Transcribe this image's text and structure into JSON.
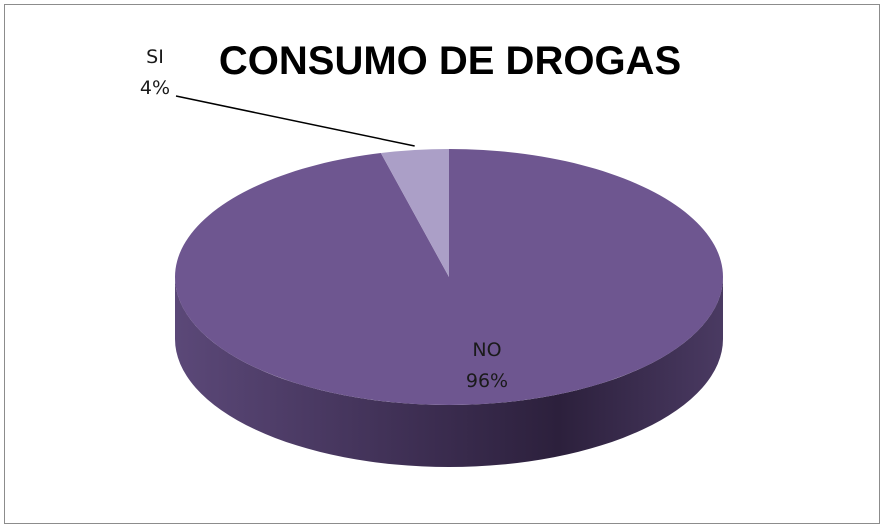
{
  "chart_data": {
    "type": "pie",
    "title": "CONSUMO DE DROGAS",
    "categories": [
      "NO",
      "SI"
    ],
    "values": [
      96,
      4
    ],
    "labels": [
      {
        "category": "NO",
        "percent": "96%"
      },
      {
        "category": "SI",
        "percent": "4%"
      }
    ],
    "legend": "none",
    "style": "3d",
    "colors": {
      "NO": "#6e5690",
      "SI": "#ab9fc7",
      "side_dark": "#3a2a4e",
      "leader_line": "#000000"
    }
  }
}
